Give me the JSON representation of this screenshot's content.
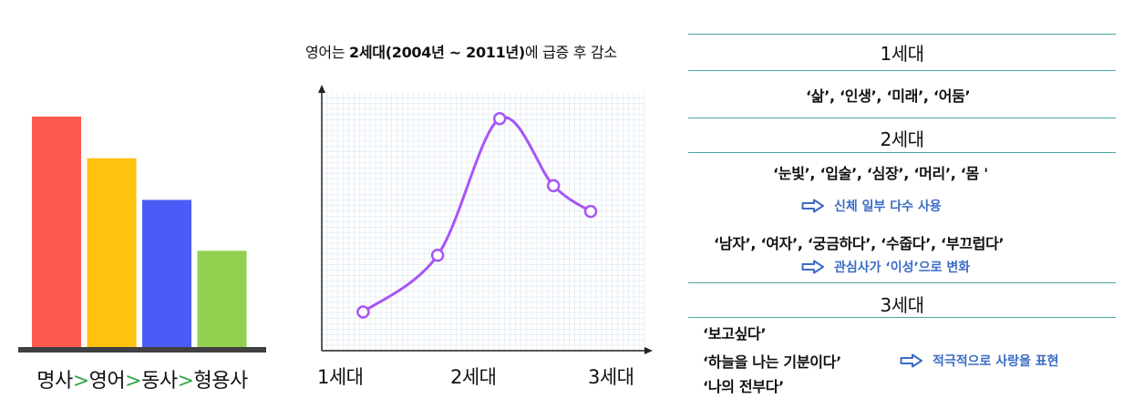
{
  "chart_data": [
    {
      "type": "bar",
      "categories": [
        "명사",
        "영어",
        "동사",
        "형용사"
      ],
      "values": [
        100,
        82,
        64,
        42
      ],
      "colors": [
        "#ff5a4f",
        "#ffc20e",
        "#4a5cf5",
        "#92d050"
      ],
      "caption": [
        "명사",
        ">",
        "영어",
        ">",
        "동사",
        ">",
        "형용사"
      ]
    },
    {
      "type": "line",
      "title_prefix": "영어는 ",
      "title_bold": "2세대(2004년 ~ 2011년)",
      "title_suffix": "에 급증 후 감소",
      "x": [
        1,
        1.9,
        2.65,
        3.3,
        3.75
      ],
      "y": [
        15,
        37,
        90,
        64,
        54
      ],
      "xticks": [
        "1세대",
        "2세대",
        "3세대"
      ],
      "xtick_positions": [
        1,
        2.5,
        3.8
      ],
      "xlim": [
        0.5,
        4.4
      ],
      "ylim": [
        0,
        100
      ],
      "color": "#a855f7",
      "grid": true
    }
  ],
  "panel": {
    "gen1": {
      "title": "1세대",
      "words": "‘삶’, ‘인생’, ‘미래’, ‘어둠’"
    },
    "gen2": {
      "title": "2세대",
      "words1": "‘눈빛’, ‘입술’, ‘심장’, ‘머리’, ‘몸 '",
      "note1": "신체 일부 다수 사용",
      "words2": "‘남자’, ‘여자’, ‘궁금하다’, ‘수줍다’, ‘부끄럽다’",
      "note2": "관심사가 ‘이성’으로 변화"
    },
    "gen3": {
      "title": "3세대",
      "lines": [
        "‘보고싶다’",
        "‘하늘을 나는 기분이다’",
        "‘나의 전부다’"
      ],
      "note": "적극적으로 사랑을 표현"
    },
    "accent": "#4aa7a1",
    "note_color": "#3b6cc4"
  }
}
